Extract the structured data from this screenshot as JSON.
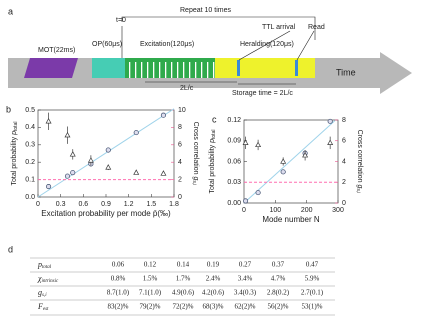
{
  "diagram": {
    "panel": "a",
    "mot": "MOT(22ms)",
    "t0": "t=0",
    "repeat": "Repeat 10 times",
    "op": "OP(60μs)",
    "excitation": "Excitation(120μs)",
    "heralding": "Heralding(120μs)",
    "ttl": "TTL arrival",
    "read": "Read",
    "delay": "2L/c",
    "storage": "Storage time = 2L/c",
    "time": "Time"
  },
  "chart_data": [
    {
      "type": "scatter",
      "panel": "b",
      "xlabel": "Excitation probability per mode p̄(‰)",
      "ylabel": "Total probability ",
      "ylabel_symbol": "p",
      "ylabel_subscript": "total",
      "y2label": "Cross correlation ",
      "y2label_symbol": "g",
      "y2label_subscript": "s,i",
      "y2color": "#e8508a",
      "xlim": [
        0,
        1.8
      ],
      "xticks": [
        0,
        0.3,
        0.6,
        0.9,
        1.2,
        1.5,
        1.8
      ],
      "ylim": [
        0,
        0.5
      ],
      "yticks": [
        {
          "value": 0,
          "label": "0.0"
        },
        0.1,
        0.2,
        0.3,
        0.4,
        0.5
      ],
      "y2lim": [
        0,
        10
      ],
      "y2ticks": [
        0,
        2,
        4,
        6,
        8,
        10
      ],
      "series": [
        {
          "marker": "line",
          "color": "#9fd3ea",
          "x": [
            0,
            1.8
          ],
          "values": [
            0,
            0.507
          ]
        },
        {
          "marker": "line",
          "dashed": true,
          "axis": "y2",
          "color": "#ff6fb0",
          "x": [
            0,
            1.8
          ],
          "values": [
            2,
            2
          ]
        },
        {
          "marker": "circle",
          "color": "#3a4a6a",
          "x": [
            0.14,
            0.39,
            0.46,
            0.7,
            0.93,
            1.3,
            1.66
          ],
          "values": [
            0.06,
            0.12,
            0.14,
            0.19,
            0.27,
            0.37,
            0.47
          ]
        },
        {
          "marker": "triangle",
          "axis": "y2",
          "color": "#3a3a3a",
          "x": [
            0.14,
            0.39,
            0.46,
            0.7,
            0.93,
            1.3,
            1.66
          ],
          "values": [
            8.7,
            7.1,
            4.9,
            4.2,
            3.4,
            2.8,
            2.7
          ],
          "errors": [
            1.0,
            1.0,
            0.6,
            0.6,
            0.3,
            0.2,
            0.1
          ]
        }
      ]
    },
    {
      "type": "scatter",
      "panel": "c",
      "xlabel": "Mode number N",
      "ylabel": "Total probability ",
      "ylabel_symbol": "p",
      "ylabel_subscript": "total",
      "y2label": "Cross correlation ",
      "y2label_symbol": "g",
      "y2label_subscript": "s,i",
      "y2color": "#e8508a",
      "xlim": [
        0,
        300
      ],
      "xticks": [
        0,
        100,
        200,
        300
      ],
      "ylim": [
        0,
        0.12
      ],
      "yticks": [
        {
          "value": 0,
          "label": "0.00"
        },
        0.03,
        0.06,
        0.09,
        0.12
      ],
      "y2lim": [
        0,
        8
      ],
      "y2ticks": [
        0,
        2,
        4,
        6,
        8
      ],
      "series": [
        {
          "marker": "line",
          "color": "#9fd3ea",
          "x": [
            0,
            290
          ],
          "values": [
            0,
            0.119
          ]
        },
        {
          "marker": "line",
          "dashed": true,
          "axis": "y2",
          "color": "#ff6fb0",
          "x": [
            0,
            300
          ],
          "values": [
            2,
            2
          ]
        },
        {
          "marker": "circle",
          "color": "#3a4a6a",
          "x": [
            5,
            45,
            125,
            195,
            275
          ],
          "values": [
            0.003,
            0.015,
            0.045,
            0.072,
            0.118
          ]
        },
        {
          "marker": "triangle",
          "axis": "y2",
          "color": "#3a3a3a",
          "x": [
            5,
            45,
            125,
            195,
            275
          ],
          "values": [
            5.8,
            5.6,
            4.0,
            4.6,
            5.8
          ],
          "errors": [
            0.6,
            0.5,
            0.4,
            0.5,
            0.6
          ]
        }
      ]
    }
  ],
  "table": {
    "panel": "d",
    "rows": [
      {
        "symbol": "p",
        "subscript": "total",
        "cells": [
          "0.06",
          "0.12",
          "0.14",
          "0.19",
          "0.27",
          "0.37",
          "0.47"
        ]
      },
      {
        "symbol": "χ",
        "subscript": "intrinsic",
        "cells": [
          "0.8%",
          "1.5%",
          "1.7%",
          "2.4%",
          "3.4%",
          "4.7%",
          "5.9%"
        ]
      },
      {
        "symbol": "g",
        "subscript": "s,i",
        "cells": [
          "8.7(1.0)",
          "7.1(1.0)",
          "4.9(0.6)",
          "4.2(0.6)",
          "3.4(0.3)",
          "2.8(0.2)",
          "2.7(0.1)"
        ]
      },
      {
        "symbol": "F",
        "subscript": "est",
        "cells": [
          "83(2)%",
          "79(2)%",
          "72(2)%",
          "68(3)%",
          "62(2)%",
          "56(2)%",
          "53(1)%"
        ]
      }
    ]
  }
}
